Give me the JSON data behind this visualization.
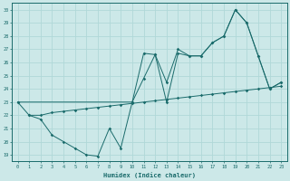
{
  "xlabel": "Humidex (Indice chaleur)",
  "xlim": [
    -0.5,
    23.5
  ],
  "ylim": [
    18.5,
    30.5
  ],
  "xticks": [
    0,
    1,
    2,
    3,
    4,
    5,
    6,
    7,
    8,
    9,
    10,
    11,
    12,
    13,
    14,
    15,
    16,
    17,
    18,
    19,
    20,
    21,
    22,
    23
  ],
  "yticks": [
    19,
    20,
    21,
    22,
    23,
    24,
    25,
    26,
    27,
    28,
    29,
    30
  ],
  "bg_color": "#cce8e8",
  "grid_color": "#b0d8d8",
  "line_color": "#1a6b6b",
  "line1_x": [
    0,
    1,
    2,
    3,
    4,
    5,
    6,
    7,
    8,
    9,
    10,
    11,
    12,
    13,
    14,
    15,
    16,
    17,
    18,
    19,
    20,
    21,
    22,
    23
  ],
  "line1_y": [
    23.0,
    22.0,
    22.0,
    22.2,
    22.3,
    22.4,
    22.5,
    22.6,
    22.7,
    22.8,
    22.9,
    23.0,
    23.1,
    23.2,
    23.3,
    23.4,
    23.5,
    23.6,
    23.7,
    23.8,
    23.9,
    24.0,
    24.1,
    24.2
  ],
  "line2_x": [
    0,
    10,
    11,
    12,
    13,
    14,
    15,
    16,
    17,
    18,
    19,
    20,
    21,
    22,
    23
  ],
  "line2_y": [
    23.0,
    23.0,
    26.7,
    26.6,
    24.5,
    27.0,
    26.5,
    26.5,
    27.5,
    28.0,
    30.0,
    29.0,
    26.5,
    24.0,
    24.5
  ],
  "line3_x": [
    1,
    2,
    3,
    4,
    5,
    6,
    7,
    8,
    9,
    10,
    11,
    12,
    13,
    14,
    15,
    16,
    17,
    18,
    19,
    20,
    21,
    22,
    23
  ],
  "line3_y": [
    22.0,
    21.7,
    20.5,
    20.0,
    19.5,
    19.0,
    18.9,
    21.0,
    19.5,
    23.0,
    24.8,
    26.6,
    23.0,
    26.7,
    26.5,
    26.5,
    27.5,
    28.0,
    30.0,
    29.0,
    26.5,
    24.0,
    24.5
  ]
}
